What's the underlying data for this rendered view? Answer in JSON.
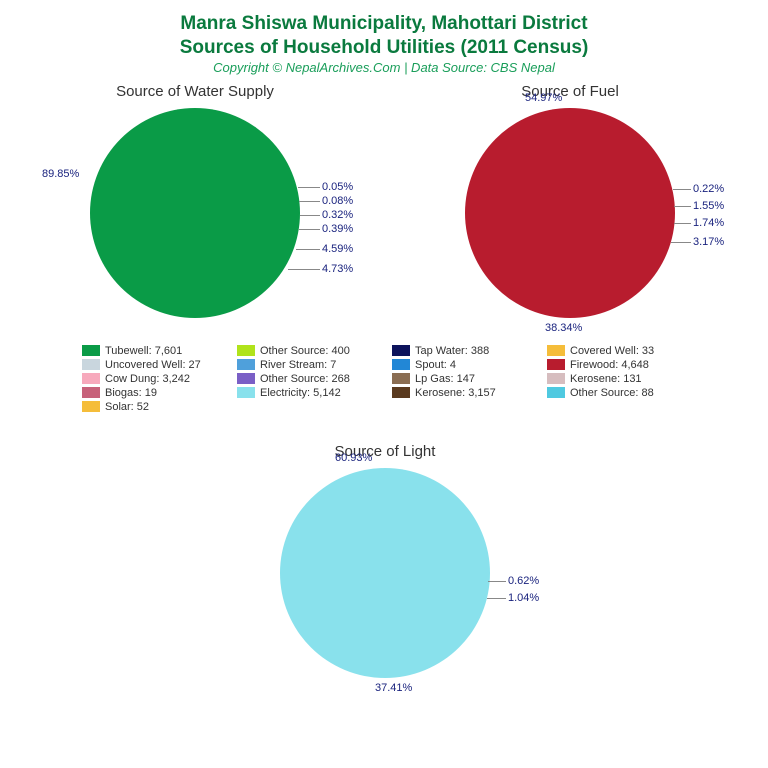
{
  "title": {
    "line1": "Manra Shiswa Municipality, Mahottari District",
    "line2": "Sources of Household Utilities (2011 Census)",
    "color": "#0a7a3e",
    "fontsize": 19
  },
  "subtitle": {
    "text": "Copyright © NepalArchives.Com | Data Source: CBS Nepal",
    "color": "#1a9e5a",
    "fontsize": 13
  },
  "label_color": "#1a237e",
  "legend_text_color": "#333333",
  "background_color": "#ffffff",
  "charts": {
    "water": {
      "title": "Source of Water Supply",
      "title_fontsize": 15,
      "diameter": 210,
      "slices": [
        {
          "label": "Tubewell",
          "value": 7601,
          "pct": 89.85,
          "color": "#0a9b47"
        },
        {
          "label": "Other Source",
          "value": 400,
          "pct": 4.73,
          "color": "#b0e31b"
        },
        {
          "label": "Tap Water",
          "value": 388,
          "pct": 4.59,
          "color": "#0d135c"
        },
        {
          "label": "Covered Well",
          "value": 33,
          "pct": 0.39,
          "color": "#f5bd3a"
        },
        {
          "label": "Uncovered Well",
          "value": 27,
          "pct": 0.32,
          "color": "#c9d6de"
        },
        {
          "label": "River Stream",
          "value": 7,
          "pct": 0.08,
          "color": "#4fa0db"
        },
        {
          "label": "Spout",
          "value": 4,
          "pct": 0.05,
          "color": "#2287d6"
        }
      ],
      "shown_labels": [
        "89.85%",
        "0.05%",
        "0.08%",
        "0.32%",
        "0.39%",
        "4.59%",
        "4.73%"
      ]
    },
    "fuel": {
      "title": "Source of Fuel",
      "title_fontsize": 15,
      "diameter": 210,
      "slices": [
        {
          "label": "Firewood",
          "value": 4648,
          "pct": 54.97,
          "color": "#b81c2e"
        },
        {
          "label": "Cow Dung",
          "value": 3242,
          "pct": 38.34,
          "color": "#f7a9bc"
        },
        {
          "label": "Other Source",
          "value": 268,
          "pct": 3.17,
          "color": "#7a5fc6"
        },
        {
          "label": "Lp Gas",
          "value": 147,
          "pct": 1.74,
          "color": "#8a6d52"
        },
        {
          "label": "Kerosene",
          "value": 131,
          "pct": 1.55,
          "color": "#d6bdbf"
        },
        {
          "label": "Biogas",
          "value": 19,
          "pct": 0.22,
          "color": "#c7617a"
        }
      ],
      "shown_labels": [
        "54.97%",
        "0.22%",
        "1.55%",
        "1.74%",
        "3.17%",
        "38.34%"
      ]
    },
    "light": {
      "title": "Source of Light",
      "title_fontsize": 15,
      "diameter": 210,
      "slices": [
        {
          "label": "Electricity",
          "value": 5142,
          "pct": 60.93,
          "color": "#89e1ec"
        },
        {
          "label": "Kerosene",
          "value": 3157,
          "pct": 37.41,
          "color": "#5a3a1f"
        },
        {
          "label": "Other Source",
          "value": 88,
          "pct": 1.04,
          "color": "#4fc9e0"
        },
        {
          "label": "Solar",
          "value": 52,
          "pct": 0.62,
          "color": "#f5bd3a"
        }
      ],
      "shown_labels": [
        "60.93%",
        "0.62%",
        "1.04%",
        "37.41%"
      ]
    }
  },
  "legend": {
    "fontsize": 11,
    "items": [
      {
        "label": "Tubewell: 7,601",
        "color": "#0a9b47"
      },
      {
        "label": "Other Source: 400",
        "color": "#b0e31b"
      },
      {
        "label": "Tap Water: 388",
        "color": "#0d135c"
      },
      {
        "label": "Covered Well: 33",
        "color": "#f5bd3a"
      },
      {
        "label": "Uncovered Well: 27",
        "color": "#c9d6de"
      },
      {
        "label": "River Stream: 7",
        "color": "#4fa0db"
      },
      {
        "label": "Spout: 4",
        "color": "#2287d6"
      },
      {
        "label": "Firewood: 4,648",
        "color": "#b81c2e"
      },
      {
        "label": "Cow Dung: 3,242",
        "color": "#f7a9bc"
      },
      {
        "label": "Other Source: 268",
        "color": "#7a5fc6"
      },
      {
        "label": "Lp Gas: 147",
        "color": "#8a6d52"
      },
      {
        "label": "Kerosene: 131",
        "color": "#d6bdbf"
      },
      {
        "label": "Biogas: 19",
        "color": "#c7617a"
      },
      {
        "label": "Electricity: 5,142",
        "color": "#89e1ec"
      },
      {
        "label": "Kerosene: 3,157",
        "color": "#5a3a1f"
      },
      {
        "label": "Other Source: 88",
        "color": "#4fc9e0"
      },
      {
        "label": "Solar: 52",
        "color": "#f5bd3a"
      }
    ],
    "cols": 4
  }
}
